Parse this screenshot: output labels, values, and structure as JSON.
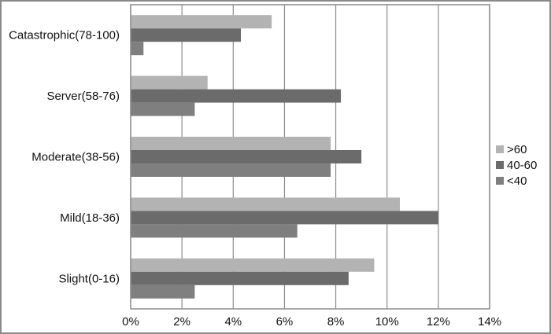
{
  "chart_data": {
    "type": "bar",
    "orientation": "horizontal",
    "categories": [
      "Catastrophic(78-100)",
      "Server(58-76)",
      "Moderate(38-56)",
      "Mild(18-36)",
      "Slight(0-16)"
    ],
    "series": [
      {
        "name": ">60",
        "values": [
          5.5,
          3.0,
          7.8,
          10.5,
          9.5
        ],
        "color": "#b3b3b3"
      },
      {
        "name": "40-60",
        "values": [
          4.3,
          8.2,
          9.0,
          12.0,
          8.5
        ],
        "color": "#6b6b6b"
      },
      {
        "name": "<40",
        "values": [
          0.5,
          2.5,
          7.8,
          6.5,
          2.5
        ],
        "color": "#7f7f7f"
      }
    ],
    "xlim": [
      0,
      14
    ],
    "x_ticks": [
      "0%",
      "2%",
      "4%",
      "6%",
      "8%",
      "10%",
      "12%",
      "14%"
    ],
    "grid": "vertical",
    "legend": "right"
  }
}
